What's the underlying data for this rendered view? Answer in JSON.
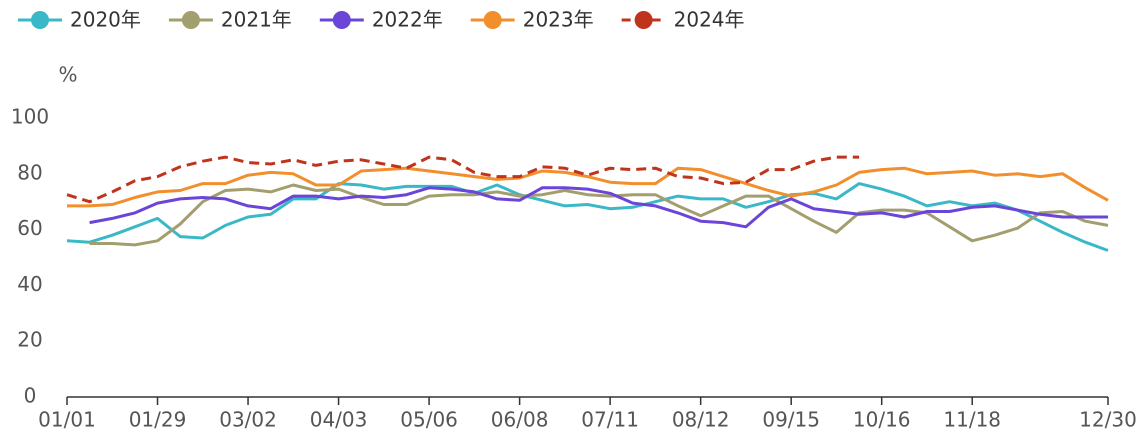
{
  "chart_data": {
    "type": "line",
    "y_label": "%",
    "categories": [
      "01/01",
      null,
      null,
      null,
      "01/29",
      null,
      null,
      null,
      "03/02",
      null,
      null,
      null,
      "04/03",
      null,
      null,
      null,
      "05/06",
      null,
      null,
      null,
      "06/08",
      null,
      null,
      null,
      "07/11",
      null,
      null,
      null,
      "08/12",
      null,
      null,
      null,
      "09/15",
      null,
      null,
      null,
      "10/16",
      null,
      null,
      null,
      "11/18",
      null,
      null,
      null,
      null,
      null,
      "12/30"
    ],
    "ylim": [
      0,
      100
    ],
    "yticks": [
      0,
      20,
      40,
      60,
      80,
      100
    ],
    "grid": false,
    "legend": "top",
    "series": [
      {
        "name": "2020年",
        "color": "#3bb8c8",
        "dashed": false,
        "values": [
          56,
          55.5,
          58,
          61,
          64,
          57.5,
          57,
          61.5,
          64.5,
          65.5,
          71,
          71,
          76.5,
          76,
          74.5,
          75.5,
          75.5,
          75.5,
          73,
          76,
          72.5,
          70.5,
          68.5,
          69,
          67.5,
          68,
          70,
          72,
          71,
          71,
          68,
          70,
          72.5,
          73,
          71,
          76.5,
          74.5,
          72,
          68.5,
          70,
          68.5,
          69.5,
          67,
          63,
          59,
          55.5,
          52.5
        ]
      },
      {
        "name": "2021年",
        "color": "#a39e6e",
        "dashed": false,
        "values": [
          null,
          55,
          55,
          54.5,
          56,
          62,
          70,
          74,
          74.5,
          73.5,
          76,
          74,
          74.5,
          71.5,
          69,
          69,
          72,
          72.5,
          72.5,
          73.5,
          72,
          72.5,
          74,
          72.5,
          72,
          72.5,
          72.5,
          68.5,
          65,
          68.5,
          72,
          72,
          67.5,
          63,
          59,
          66,
          67,
          67,
          66,
          61,
          56,
          58,
          60.5,
          66,
          66.5,
          63,
          61.5
        ]
      },
      {
        "name": "2022年",
        "color": "#6b45d8",
        "dashed": false,
        "values": [
          null,
          62.5,
          64,
          66,
          69.5,
          71,
          71.5,
          71,
          68.5,
          67.5,
          72,
          72,
          71,
          72,
          71.5,
          72.5,
          75,
          74.5,
          73.5,
          71,
          70.5,
          75,
          75,
          74.5,
          73,
          69.5,
          68.5,
          66,
          63,
          62.5,
          61,
          68,
          71,
          67.5,
          66.5,
          65.5,
          66,
          64.5,
          66.5,
          66.5,
          68,
          68.5,
          67,
          65.5,
          64.5,
          64.5,
          64.5
        ]
      },
      {
        "name": "2023年",
        "color": "#f28e2b",
        "dashed": false,
        "values": [
          68.5,
          68.5,
          69,
          71.5,
          73.5,
          74,
          76.5,
          76.5,
          79.5,
          80.5,
          80,
          76,
          76,
          81,
          81.5,
          82,
          81,
          80,
          79,
          78,
          78.5,
          81,
          80.5,
          79,
          77,
          76.5,
          76.5,
          82,
          81.5,
          79,
          76.5,
          74,
          72,
          73.5,
          76,
          80.5,
          81.5,
          82,
          80,
          80.5,
          81,
          79.5,
          80,
          79,
          80,
          75,
          70.5
        ]
      },
      {
        "name": "2024年",
        "color": "#c0341d",
        "dashed": true,
        "values": [
          72.5,
          70,
          73.5,
          77.5,
          79,
          82.5,
          84.5,
          86,
          84,
          83.5,
          85,
          83,
          84.5,
          85,
          83.5,
          82,
          86,
          85,
          80.5,
          79,
          79,
          82.5,
          82,
          79.5,
          82,
          81.5,
          82,
          79,
          78.5,
          76.5,
          77,
          81.5,
          81.5,
          84.5,
          86,
          86,
          null,
          null,
          null,
          null,
          null,
          null,
          null,
          null,
          null,
          null,
          null
        ]
      }
    ]
  }
}
